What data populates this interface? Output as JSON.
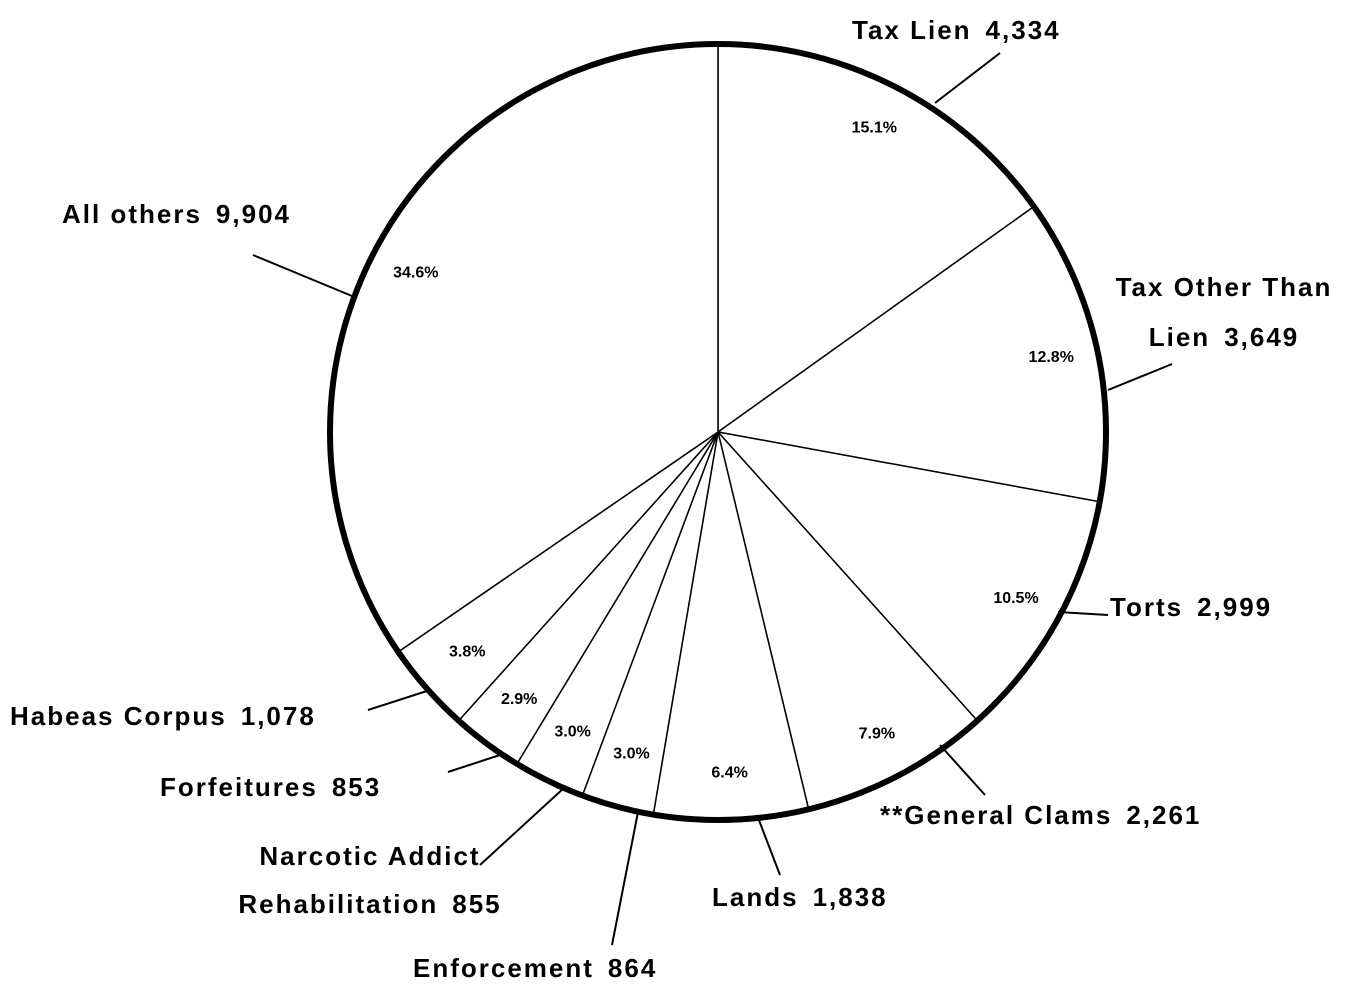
{
  "chart_data": {
    "type": "pie",
    "categories": [
      "Tax Lien",
      "Tax Other Than Lien",
      "Torts",
      "**General Clams",
      "Lands",
      "Enforcement",
      "Narcotic Addict Rehabilitation",
      "Forfeitures",
      "Habeas Corpus",
      "All others"
    ],
    "values": [
      4334,
      3649,
      2999,
      2261,
      1838,
      864,
      855,
      853,
      1078,
      9904
    ],
    "value_labels": [
      "4,334",
      "3,649",
      "2,999",
      "2,261",
      "1,838",
      "864",
      "855",
      "853",
      "1,078",
      "9,904"
    ],
    "percents": [
      15.1,
      12.8,
      10.5,
      7.9,
      6.4,
      3.0,
      3.0,
      2.9,
      3.8,
      34.6
    ],
    "percent_labels": [
      "15.1%",
      "12.8%",
      "10.5%",
      "7.9%",
      "6.4%",
      "3.0%",
      "3.0%",
      "2.9%",
      "3.8%",
      "34.6%"
    ],
    "color": "#ffffff"
  }
}
